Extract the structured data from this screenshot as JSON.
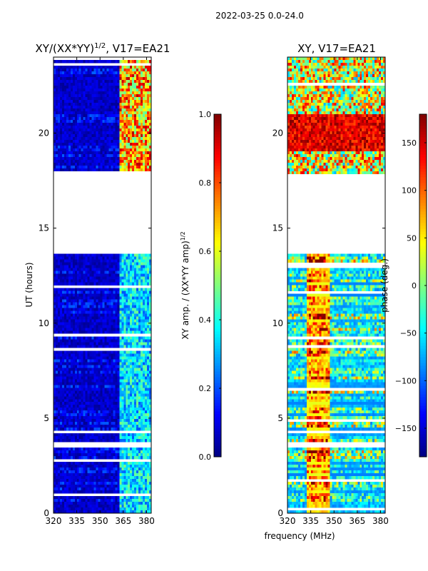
{
  "figure": {
    "suptitle": "2022-03-25 0.0-24.0",
    "xlabel_shared": "frequency (MHz)"
  },
  "chart_data": [
    {
      "type": "heatmap",
      "title_main": "XY/(XX*YY)",
      "title_sup": "1/2",
      "title_rest": ", V17=EA21",
      "xlabel": "",
      "ylabel": "UT (hours)",
      "xlim": [
        320,
        383
      ],
      "ylim": [
        0,
        24
      ],
      "xticks": [
        320,
        335,
        350,
        365,
        380
      ],
      "yticks": [
        0,
        5,
        10,
        15,
        20
      ],
      "data_gaps_hours": [
        [
          3.5,
          3.7
        ],
        [
          13.7,
          17.8
        ],
        [
          17.9,
          18.0
        ]
      ],
      "bright_band_mhz": [
        362,
        383
      ],
      "colorbar": {
        "label_main": "XY amp. / (XX*YY amp)",
        "label_sup": "1/2",
        "min": 0.0,
        "max": 1.0,
        "ticks": [
          0.0,
          0.2,
          0.4,
          0.6,
          0.8,
          1.0
        ],
        "tick_labels": [
          "0.0",
          "0.2",
          "0.4",
          "0.6",
          "0.8",
          "1.0"
        ],
        "colormap": "jet"
      }
    },
    {
      "type": "heatmap",
      "title_main": "XY, V17=EA21",
      "xlabel": "frequency (MHz)",
      "ylabel": "",
      "xlim": [
        320,
        383
      ],
      "ylim": [
        0,
        24
      ],
      "xticks": [
        320,
        335,
        350,
        365,
        380
      ],
      "yticks": [
        0,
        5,
        10,
        15,
        20
      ],
      "data_gaps_hours": [
        [
          3.5,
          3.7
        ],
        [
          13.7,
          17.8
        ]
      ],
      "colorbar": {
        "label": "phase (deg.)",
        "min": -180,
        "max": 180,
        "ticks": [
          -150,
          -100,
          -50,
          0,
          50,
          100,
          150
        ],
        "tick_labels": [
          "−150",
          "−100",
          "−50",
          "0",
          "50",
          "100",
          "150"
        ],
        "colormap": "jet"
      }
    }
  ]
}
